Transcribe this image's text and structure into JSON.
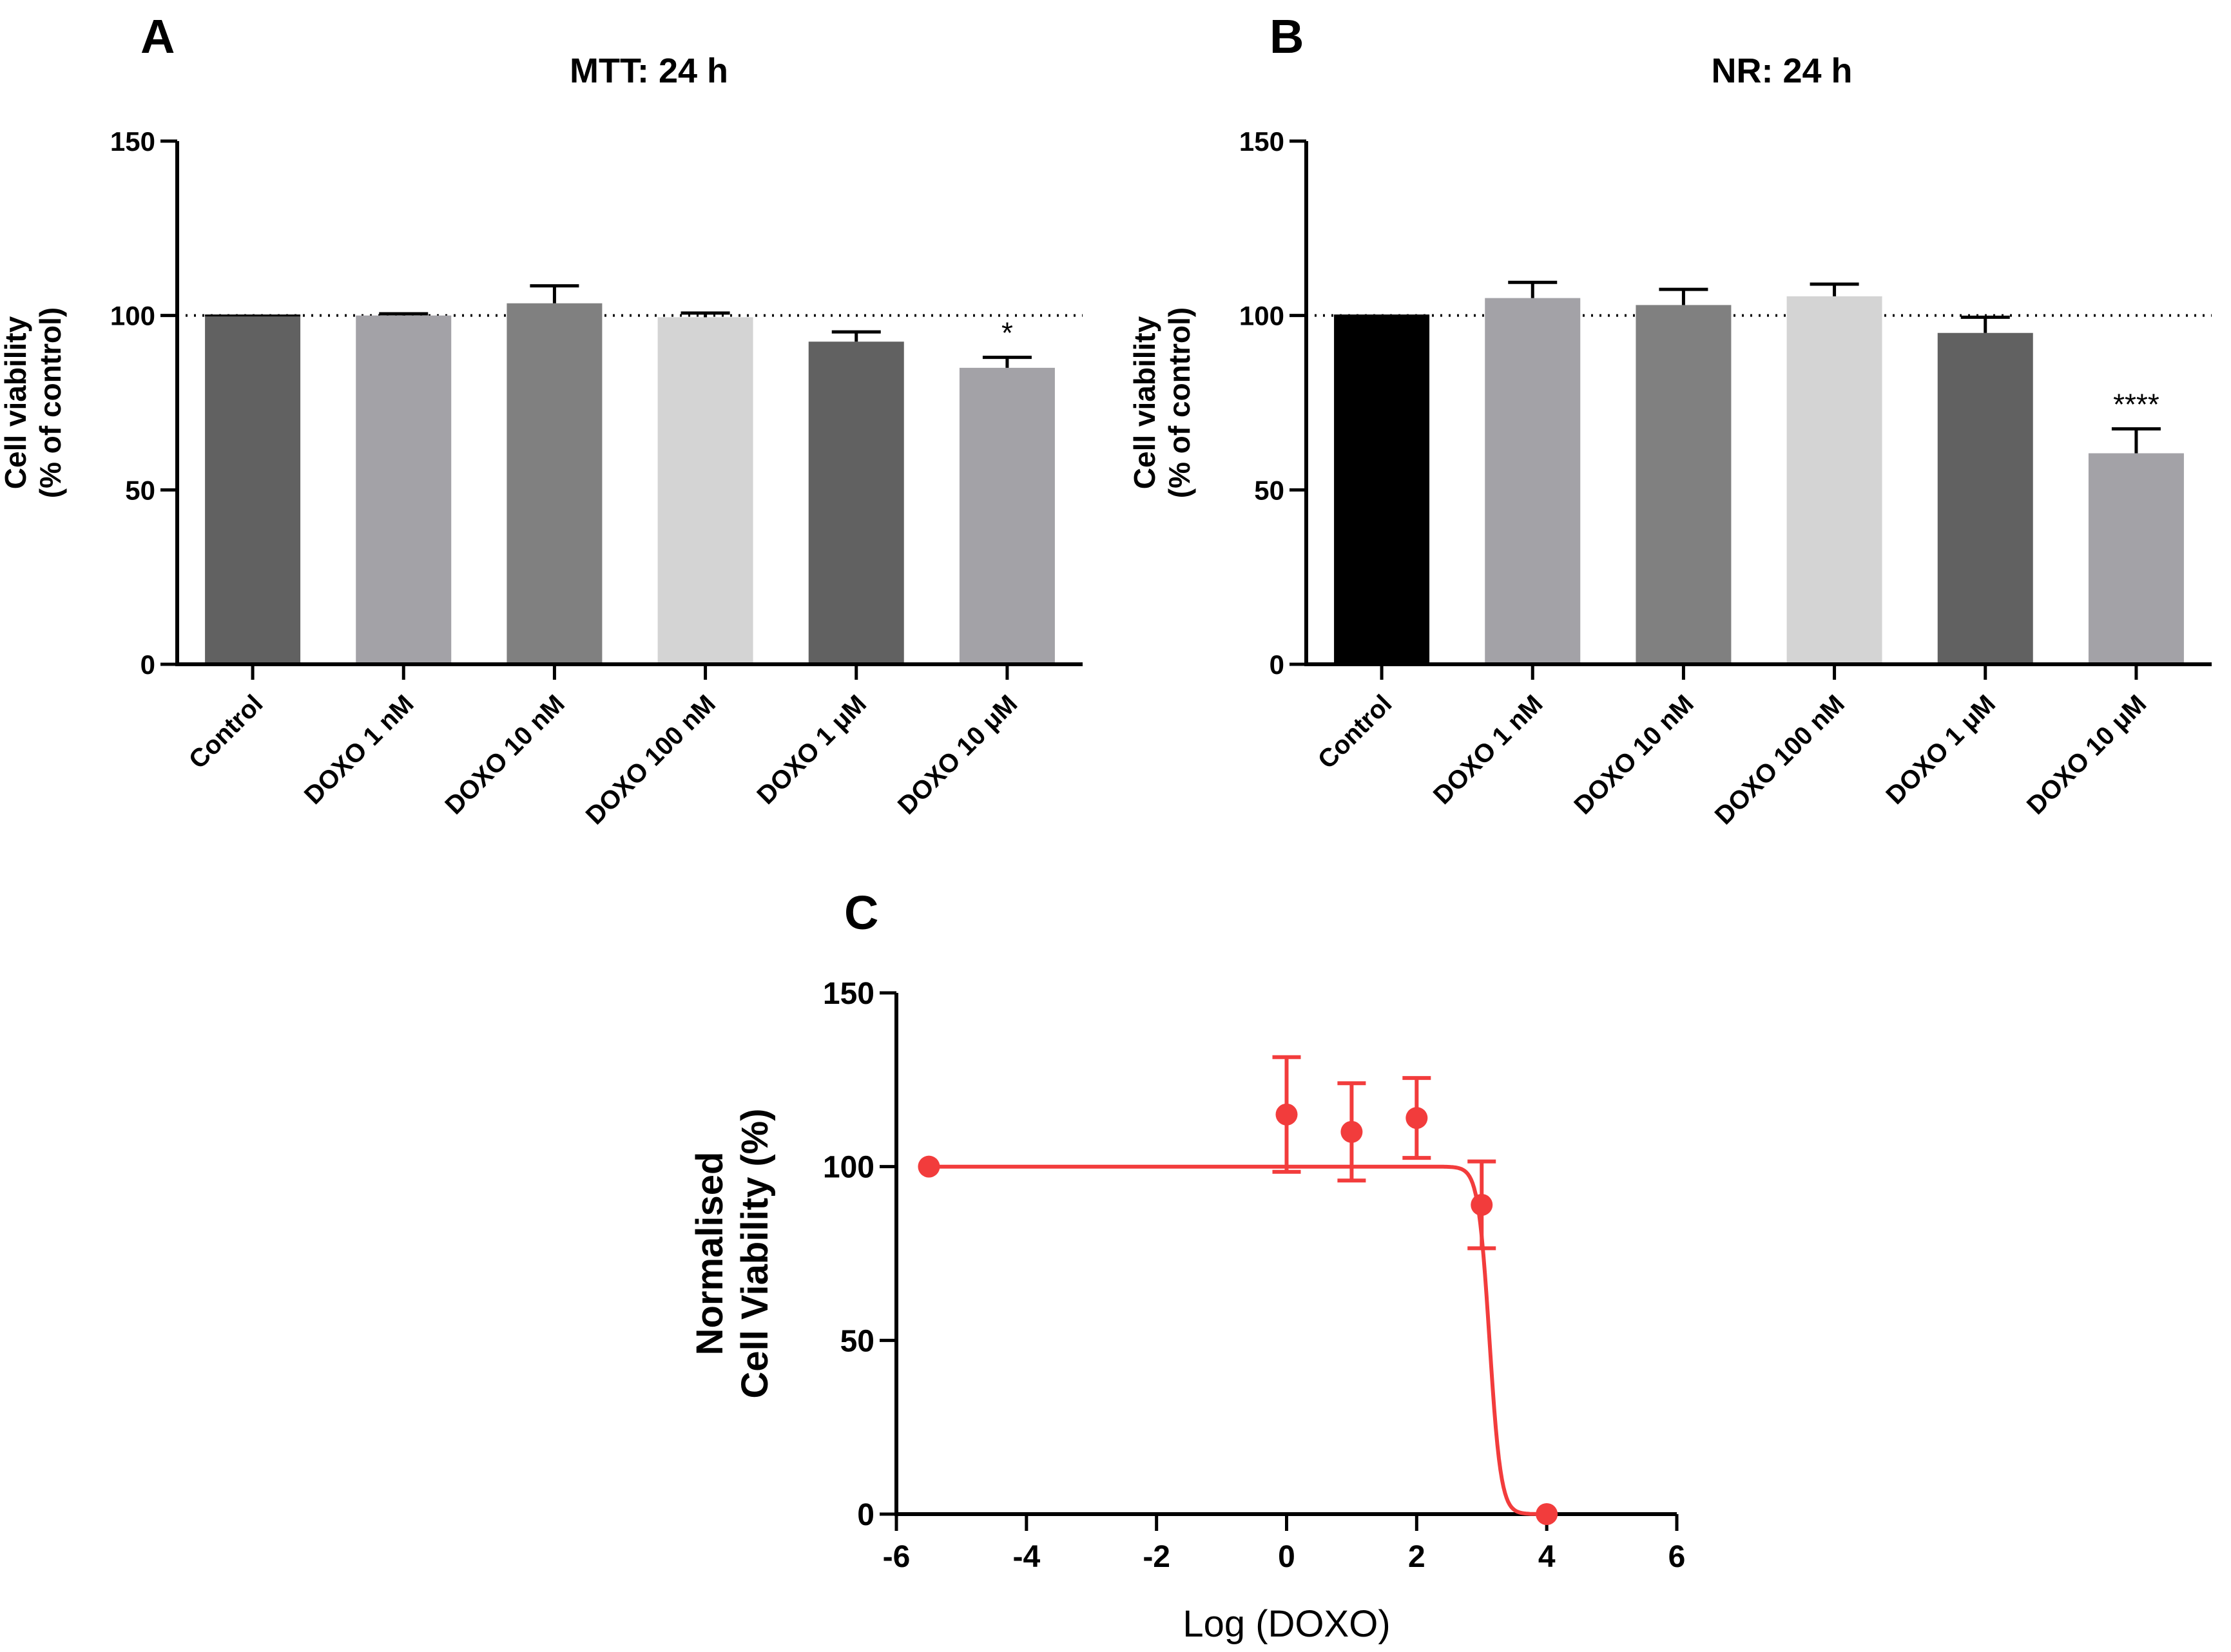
{
  "chart_data": [
    {
      "panel": "A",
      "type": "bar",
      "title": "MTT: 24 h",
      "ylabel_line1": "Cell viability",
      "ylabel_line2": "(% of control)",
      "xlabel": "",
      "ylim": [
        0,
        150
      ],
      "yticks": [
        "0",
        "50",
        "100",
        "150"
      ],
      "yticks_values": [
        0,
        50,
        100,
        150
      ],
      "reference_line": 100,
      "categories": [
        "Control",
        "DOXO 1 nM",
        "DOXO 10 nM",
        "DOXO 100 nM",
        "DOXO 1 μM",
        "DOXO 10 μM"
      ],
      "values": [
        100,
        100,
        103.5,
        99.5,
        92.5,
        85
      ],
      "errors": [
        0,
        0.5,
        5,
        1.2,
        2.8,
        3
      ],
      "colors": [
        "#616161",
        "#a3a2a7",
        "#808080",
        "#d4d4d4",
        "#616161",
        "#a3a2a7"
      ],
      "significance": [
        "",
        "",
        "",
        "",
        "",
        "*"
      ]
    },
    {
      "panel": "B",
      "type": "bar",
      "title": "NR: 24 h",
      "ylabel_line1": "Cell viability",
      "ylabel_line2": "(% of control)",
      "xlabel": "",
      "ylim": [
        0,
        150
      ],
      "yticks": [
        "0",
        "50",
        "100",
        "150"
      ],
      "yticks_values": [
        0,
        50,
        100,
        150
      ],
      "reference_line": 100,
      "categories": [
        "Control",
        "DOXO 1 nM",
        "DOXO 10 nM",
        "DOXO 100 nM",
        "DOXO 1 μM",
        "DOXO 10 μM"
      ],
      "values": [
        100,
        105,
        103,
        105.5,
        95,
        60.5
      ],
      "errors": [
        0,
        4.5,
        4.5,
        3.5,
        4.5,
        7
      ],
      "colors": [
        "#000000",
        "#a3a2a7",
        "#808080",
        "#d4d4d4",
        "#616161",
        "#a3a2a7"
      ],
      "significance": [
        "",
        "",
        "",
        "",
        "",
        "****"
      ]
    },
    {
      "panel": "C",
      "type": "scatter",
      "title": "",
      "ylabel_line1": "Normalised",
      "ylabel_line2": "Cell Viability (%)",
      "xlabel": "Log (DOXO)",
      "xlim": [
        -6,
        6
      ],
      "ylim": [
        0,
        150
      ],
      "xticks": [
        "-6",
        "-4",
        "-2",
        "0",
        "2",
        "4",
        "6"
      ],
      "xticks_values": [
        -6,
        -4,
        -2,
        0,
        2,
        4,
        6
      ],
      "yticks": [
        "0",
        "50",
        "100",
        "150"
      ],
      "yticks_values": [
        0,
        50,
        100,
        150
      ],
      "color": "#f23c3c",
      "points": [
        {
          "x": -5.5,
          "y": 100,
          "err": 0
        },
        {
          "x": 0,
          "y": 115,
          "err": 16.5
        },
        {
          "x": 1,
          "y": 110,
          "err": 14
        },
        {
          "x": 2,
          "y": 114,
          "err": 11.5
        },
        {
          "x": 3,
          "y": 89,
          "err": 12.5
        },
        {
          "x": 4,
          "y": 0,
          "err": 0
        }
      ],
      "fit": {
        "top": 100,
        "bottom": 0,
        "log_ic50": 3.12,
        "hill_slope": -5
      }
    }
  ],
  "panel_labels": {
    "a": "A",
    "b": "B",
    "c": "C"
  }
}
